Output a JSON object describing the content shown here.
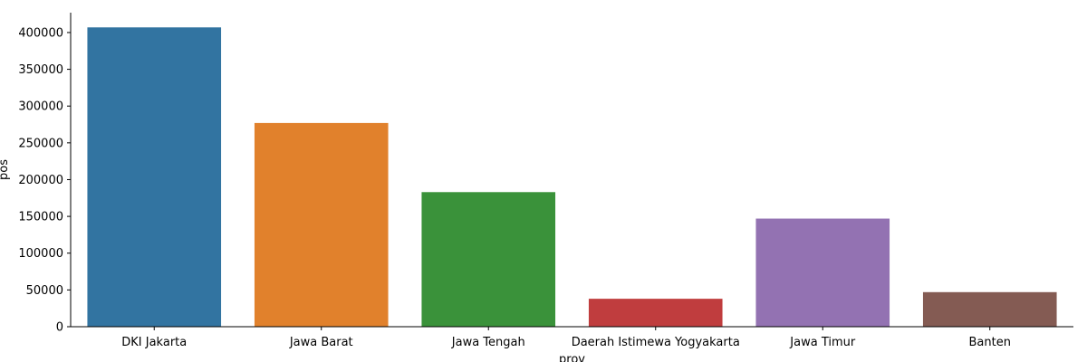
{
  "chart_data": {
    "type": "bar",
    "categories": [
      "DKI Jakarta",
      "Jawa Barat",
      "Jawa Tengah",
      "Daerah Istimewa Yogyakarta",
      "Jawa Timur",
      "Banten"
    ],
    "values": [
      407000,
      277000,
      183000,
      38000,
      147000,
      47000
    ],
    "colors": [
      "#3274a1",
      "#e1812c",
      "#3a923a",
      "#c03d3e",
      "#9372b2",
      "#845b53"
    ],
    "xlabel": "prov",
    "ylabel": "pos",
    "ylim": [
      0,
      427000
    ],
    "yticks": [
      0,
      50000,
      100000,
      150000,
      200000,
      250000,
      300000,
      350000,
      400000
    ],
    "grid": false
  }
}
